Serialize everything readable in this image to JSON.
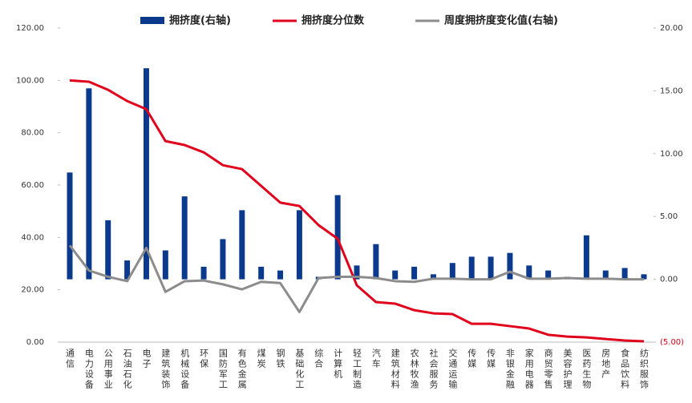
{
  "chart_data": {
    "type": "combo",
    "categories": [
      "通信",
      "电力设备",
      "公用事业",
      "石油石化",
      "电子",
      "建筑装饰",
      "机械设备",
      "环保",
      "国防军工",
      "有色金属",
      "煤炭",
      "钢铁",
      "基础化工",
      "综合",
      "计算机",
      "轻工制造",
      "汽车",
      "建筑材料",
      "农林牧渔",
      "社会服务",
      "交通运输",
      "传媒",
      "传媒",
      "非银金融",
      "家用电器",
      "商贸零售",
      "美容护理",
      "医药生物",
      "房地产",
      "食品饮料",
      "纺织服饰"
    ],
    "series": [
      {
        "name": "拥挤度(右轴)",
        "kind": "bar",
        "axis": "y2",
        "color": "#0b3a8c",
        "values": [
          8.5,
          15.2,
          4.7,
          1.5,
          16.8,
          2.3,
          6.6,
          1.0,
          3.2,
          5.5,
          1.0,
          0.7,
          5.5,
          0.2,
          6.7,
          1.1,
          2.8,
          0.7,
          1.0,
          0.4,
          1.3,
          1.8,
          1.8,
          2.1,
          1.1,
          0.7,
          0.2,
          3.5,
          0.7,
          0.9,
          0.4
        ]
      },
      {
        "name": "拥挤度分位数",
        "kind": "line",
        "axis": "y",
        "color": "#e0001b",
        "values": [
          100,
          99.5,
          96.4,
          92.1,
          89,
          76.8,
          75.3,
          72.5,
          67.6,
          66.1,
          59.7,
          53.3,
          52,
          44.7,
          39.5,
          21.7,
          15.3,
          14.7,
          12.2,
          11,
          10.7,
          7,
          7,
          6.1,
          5.2,
          2.8,
          2.1,
          1.8,
          1.2,
          0.6,
          0.3
        ]
      },
      {
        "name": "周度拥挤度变化值(右轴)",
        "kind": "line",
        "axis": "y2",
        "color": "#8c8c8c",
        "values": [
          2.7,
          0.7,
          0.2,
          -0.15,
          2.5,
          -1.0,
          -0.15,
          -0.1,
          -0.4,
          -0.8,
          -0.2,
          -0.3,
          -2.6,
          0.1,
          0.2,
          0.2,
          0.1,
          -0.15,
          -0.2,
          0.05,
          0.05,
          0,
          0,
          0.6,
          0.05,
          0.05,
          0.1,
          0.05,
          0.05,
          0,
          0
        ]
      }
    ],
    "ylim": [
      0,
      120
    ],
    "yticks": [
      {
        "value": 0,
        "label": "0.00"
      },
      {
        "value": 20,
        "label": "20.00"
      },
      {
        "value": 40,
        "label": "40.00"
      },
      {
        "value": 60,
        "label": "60.00"
      },
      {
        "value": 80,
        "label": "80.00"
      },
      {
        "value": 100,
        "label": "100.00"
      },
      {
        "value": 120,
        "label": "120.00"
      }
    ],
    "y2lim": [
      -5,
      20
    ],
    "y2ticks": [
      {
        "value": -5,
        "label": "(5.00)"
      },
      {
        "value": 0,
        "label": "0.00"
      },
      {
        "value": 5,
        "label": "5.00"
      },
      {
        "value": 10,
        "label": "10.00"
      },
      {
        "value": 15,
        "label": "15.00"
      },
      {
        "value": 20,
        "label": "20.00"
      }
    ],
    "y2_negative_tick_color": "#e0001b",
    "legend": "top"
  }
}
